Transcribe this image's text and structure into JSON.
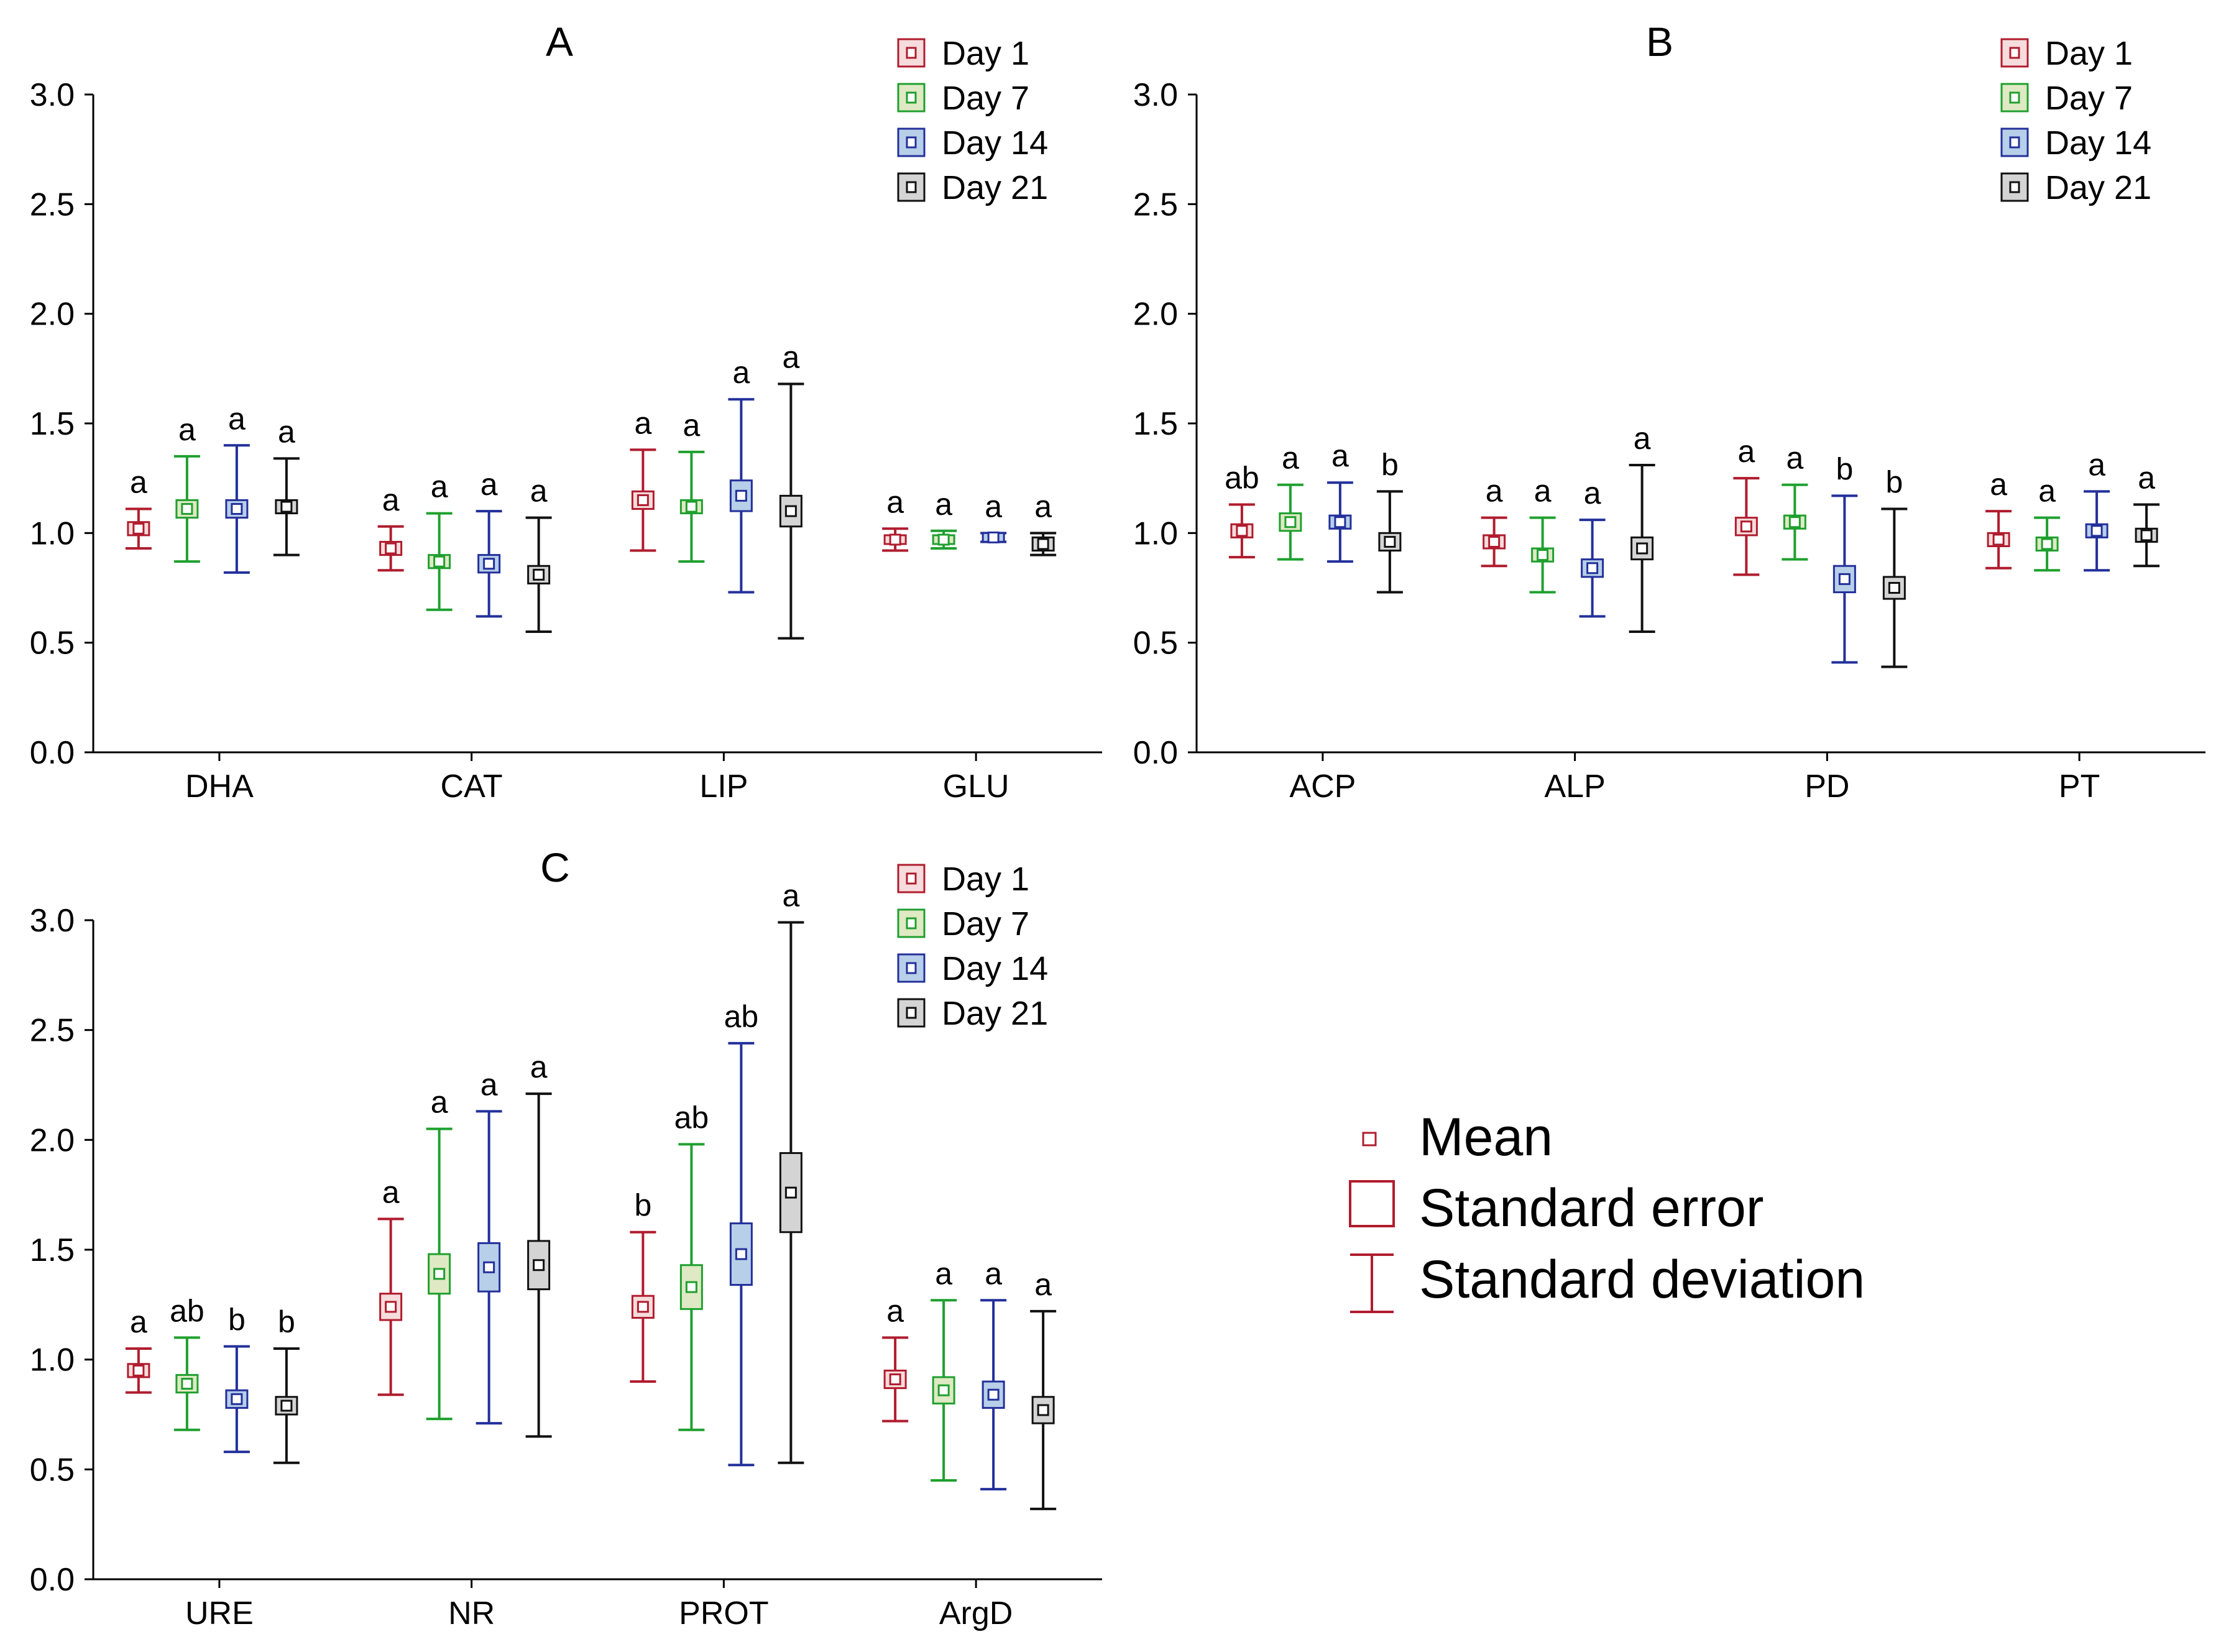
{
  "groups": [
    {
      "name": "Day 1",
      "color": "#b01c2e",
      "fill": "#f6dcdc"
    },
    {
      "name": "Day 7",
      "color": "#1fa02f",
      "fill": "#dfe9c3"
    },
    {
      "name": "Day 14",
      "color": "#23309b",
      "fill": "#b7cfe8"
    },
    {
      "name": "Day 21",
      "color": "#111111",
      "fill": "#d4d4d4"
    }
  ],
  "chart_data": [
    {
      "type": "boxplot",
      "title": "A",
      "ylim": [
        0,
        3
      ],
      "yticks": [
        "0.0",
        "0.5",
        "1.0",
        "1.5",
        "2.0",
        "2.5",
        "3.0"
      ],
      "categories": [
        "DHA",
        "CAT",
        "LIP",
        "GLU"
      ],
      "series": [
        {
          "name": "Day 1",
          "mean": [
            1.02,
            0.93,
            1.15,
            0.97
          ],
          "se": [
            0.03,
            0.03,
            0.04,
            0.02
          ],
          "sd": [
            0.09,
            0.1,
            0.23,
            0.05
          ],
          "letters": [
            "a",
            "a",
            "a",
            "a"
          ]
        },
        {
          "name": "Day 7",
          "mean": [
            1.11,
            0.87,
            1.12,
            0.97
          ],
          "se": [
            0.04,
            0.03,
            0.03,
            0.02
          ],
          "sd": [
            0.24,
            0.22,
            0.25,
            0.04
          ],
          "letters": [
            "a",
            "a",
            "a",
            "a"
          ]
        },
        {
          "name": "Day 14",
          "mean": [
            1.11,
            0.86,
            1.17,
            0.98
          ],
          "se": [
            0.04,
            0.04,
            0.07,
            0.02
          ],
          "sd": [
            0.29,
            0.24,
            0.44,
            0.02
          ],
          "letters": [
            "a",
            "a",
            "a",
            "a"
          ]
        },
        {
          "name": "Day 21",
          "mean": [
            1.12,
            0.81,
            1.1,
            0.95
          ],
          "se": [
            0.03,
            0.04,
            0.07,
            0.03
          ],
          "sd": [
            0.22,
            0.26,
            0.58,
            0.05
          ],
          "letters": [
            "a",
            "a",
            "a",
            "a"
          ]
        }
      ]
    },
    {
      "type": "boxplot",
      "title": "B",
      "ylim": [
        0,
        3
      ],
      "yticks": [
        "0.0",
        "0.5",
        "1.0",
        "1.5",
        "2.0",
        "2.5",
        "3.0"
      ],
      "categories": [
        "ACP",
        "ALP",
        "PD",
        "PT"
      ],
      "series": [
        {
          "name": "Day 1",
          "mean": [
            1.01,
            0.96,
            1.03,
            0.97
          ],
          "se": [
            0.03,
            0.03,
            0.04,
            0.03
          ],
          "sd": [
            0.12,
            0.11,
            0.22,
            0.13
          ],
          "letters": [
            "ab",
            "a",
            "a",
            "a"
          ]
        },
        {
          "name": "Day 7",
          "mean": [
            1.05,
            0.9,
            1.05,
            0.95
          ],
          "se": [
            0.04,
            0.03,
            0.03,
            0.03
          ],
          "sd": [
            0.17,
            0.17,
            0.17,
            0.12
          ],
          "letters": [
            "a",
            "a",
            "a",
            "a"
          ]
        },
        {
          "name": "Day 14",
          "mean": [
            1.05,
            0.84,
            0.79,
            1.01
          ],
          "se": [
            0.03,
            0.04,
            0.06,
            0.03
          ],
          "sd": [
            0.18,
            0.22,
            0.38,
            0.18
          ],
          "letters": [
            "a",
            "a",
            "b",
            "a"
          ]
        },
        {
          "name": "Day 21",
          "mean": [
            0.96,
            0.93,
            0.75,
            0.99
          ],
          "se": [
            0.04,
            0.05,
            0.05,
            0.03
          ],
          "sd": [
            0.23,
            0.38,
            0.36,
            0.14
          ],
          "letters": [
            "b",
            "a",
            "b",
            "a"
          ]
        }
      ]
    },
    {
      "type": "boxplot",
      "title": "C",
      "ylim": [
        0,
        3
      ],
      "yticks": [
        "0.0",
        "0.5",
        "1.0",
        "1.5",
        "2.0",
        "2.5",
        "3.0"
      ],
      "categories": [
        "URE",
        "NR",
        "PROT",
        "ArgD"
      ],
      "series": [
        {
          "name": "Day 1",
          "mean": [
            0.95,
            1.24,
            1.24,
            0.91
          ],
          "se": [
            0.03,
            0.06,
            0.05,
            0.04
          ],
          "sd": [
            0.1,
            0.4,
            0.34,
            0.19
          ],
          "letters": [
            "a",
            "a",
            "b",
            "a"
          ]
        },
        {
          "name": "Day 7",
          "mean": [
            0.89,
            1.39,
            1.33,
            0.86
          ],
          "se": [
            0.04,
            0.09,
            0.1,
            0.06
          ],
          "sd": [
            0.21,
            0.66,
            0.65,
            0.41
          ],
          "letters": [
            "ab",
            "a",
            "ab",
            "a"
          ]
        },
        {
          "name": "Day 14",
          "mean": [
            0.82,
            1.42,
            1.48,
            0.84
          ],
          "se": [
            0.04,
            0.11,
            0.14,
            0.06
          ],
          "sd": [
            0.24,
            0.71,
            0.96,
            0.43
          ],
          "letters": [
            "b",
            "a",
            "ab",
            "a"
          ]
        },
        {
          "name": "Day 21",
          "mean": [
            0.79,
            1.43,
            1.76,
            0.77
          ],
          "se": [
            0.04,
            0.11,
            0.18,
            0.06
          ],
          "sd": [
            0.26,
            0.78,
            1.23,
            0.45
          ],
          "letters": [
            "b",
            "a",
            "a",
            "a"
          ]
        }
      ]
    }
  ],
  "key_legend": {
    "mean": "Mean",
    "se": "Standard error",
    "sd": "Standard deviation"
  }
}
